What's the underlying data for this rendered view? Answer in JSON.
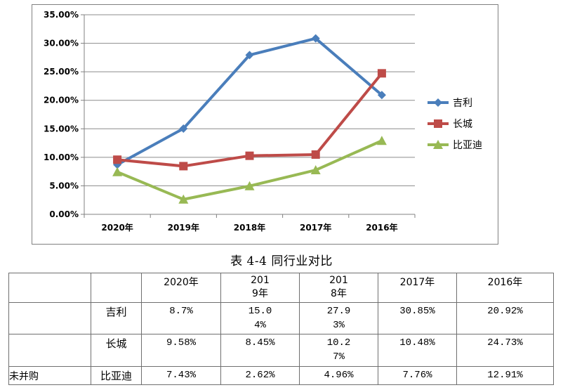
{
  "chart_data": {
    "type": "line",
    "categories": [
      "2020年",
      "2019年",
      "2018年",
      "2017年",
      "2016年"
    ],
    "series": [
      {
        "name": "吉利",
        "values": [
          8.7,
          15.04,
          27.93,
          30.85,
          20.92
        ],
        "color": "#4a7ebb",
        "marker": "diamond"
      },
      {
        "name": "长城",
        "values": [
          9.58,
          8.45,
          10.27,
          10.48,
          24.73
        ],
        "color": "#be4b48",
        "marker": "square"
      },
      {
        "name": "比亚迪",
        "values": [
          7.43,
          2.62,
          4.96,
          7.76,
          12.91
        ],
        "color": "#98b954",
        "marker": "triangle"
      }
    ],
    "yticks": [
      "0.00%",
      "5.00%",
      "10.00%",
      "15.00%",
      "20.00%",
      "25.00%",
      "30.00%",
      "35.00%"
    ],
    "ylim": [
      0,
      35
    ],
    "grid": true,
    "legend": "right"
  },
  "caption": "表 4-4 同行业对比",
  "table": {
    "header": [
      "",
      "",
      "2020年",
      "2019年",
      "2018年",
      "2017年",
      "2016年"
    ],
    "rows": [
      {
        "group": "",
        "brand": "吉利",
        "values": [
          "8.7%",
          "15.04%",
          "27.93%",
          "30.85%",
          "20.92%"
        ]
      },
      {
        "group": "",
        "brand": "长城",
        "values": [
          "9.58%",
          "8.45%",
          "10.27%",
          "10.48%",
          "24.73%"
        ]
      },
      {
        "group": "未并购",
        "brand": "比亚迪",
        "values": [
          "7.43%",
          "2.62%",
          "4.96%",
          "7.76%",
          "12.91%"
        ]
      }
    ]
  }
}
